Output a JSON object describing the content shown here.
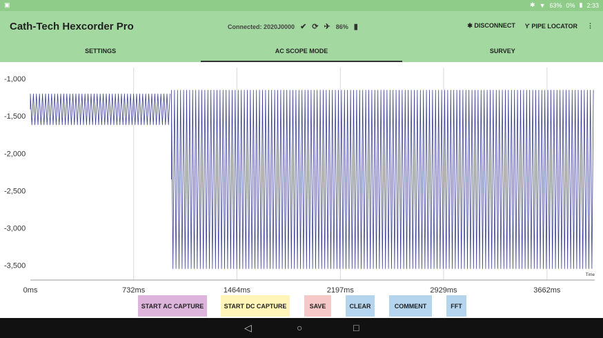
{
  "status": {
    "left_icon": "image-icon",
    "items": [
      "63%",
      "0%"
    ],
    "time": "2:33"
  },
  "app": {
    "title": "Cath-Tech Hexcorder Pro",
    "connection": "Connected: 2020J0000",
    "battery": "86%",
    "disconnect": "DISCONNECT",
    "pipe_locator": "PIPE LOCATOR",
    "overflow": "⋮"
  },
  "tabs": [
    {
      "label": "SETTINGS",
      "active": false
    },
    {
      "label": "AC SCOPE MODE",
      "active": true
    },
    {
      "label": "SURVEY",
      "active": false
    }
  ],
  "chart_data": {
    "type": "line",
    "xlabel": "Time",
    "ylabel": "",
    "x_ticks": [
      "0ms",
      "732ms",
      "1464ms",
      "2197ms",
      "2929ms",
      "3662ms"
    ],
    "y_ticks": [
      "-1,000",
      "-1,500",
      "-2,000",
      "-2,500",
      "-3,000",
      "-3,500"
    ],
    "xlim": [
      0,
      4000
    ],
    "ylim": [
      -3700,
      -850
    ],
    "series": [
      {
        "color": "#3a3f8f",
        "segments": [
          {
            "x_start": 0,
            "x_end": 1000,
            "high": -1200,
            "low": -1620
          },
          {
            "x_start": 1000,
            "x_end": 4000,
            "high": -1150,
            "low": -3550
          }
        ]
      }
    ]
  },
  "buttons": [
    {
      "label": "START AC CAPTURE",
      "color": "#dcb4dc"
    },
    {
      "label": "START DC CAPTURE",
      "color": "#fff5b8"
    },
    {
      "label": "SAVE",
      "color": "#f7c8c8"
    },
    {
      "label": "CLEAR",
      "color": "#b5d5ef"
    },
    {
      "label": "COMMENT",
      "color": "#b5d5ef"
    },
    {
      "label": "FFT",
      "color": "#b5d5ef"
    }
  ],
  "nav": {
    "back": "◁",
    "home": "○",
    "recents": "□"
  }
}
